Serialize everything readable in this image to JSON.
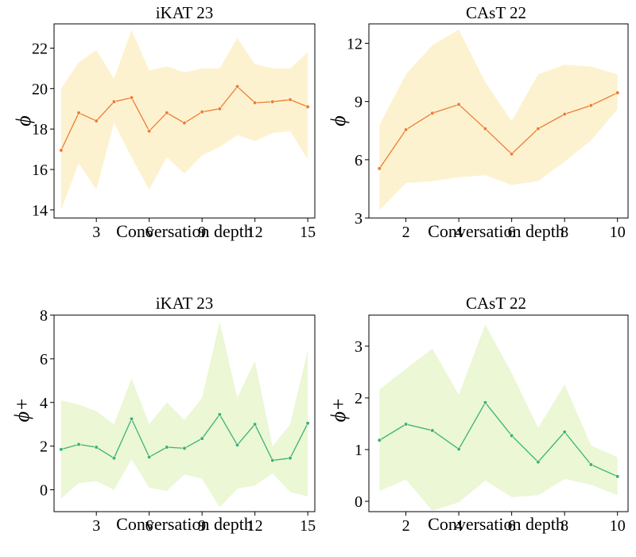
{
  "chart_data": [
    {
      "type": "line",
      "title": "iKAT 23",
      "xlabel": "Conversation depth",
      "ylabel": "ϕ",
      "xlim": [
        0.6,
        15.4
      ],
      "ylim": [
        13.6,
        23.2
      ],
      "xticks": [
        3,
        6,
        9,
        12,
        15
      ],
      "yticks": [
        14,
        16,
        18,
        20,
        22
      ],
      "line_color": "#ed7d31",
      "band_color": "#fdf2d0",
      "x": [
        1,
        2,
        3,
        4,
        5,
        6,
        7,
        8,
        9,
        10,
        11,
        12,
        13,
        14,
        15
      ],
      "series": [
        {
          "values": [
            16.95,
            18.8,
            18.4,
            19.35,
            19.55,
            17.9,
            18.8,
            18.3,
            18.85,
            19.0,
            20.1,
            19.3,
            19.35,
            19.45,
            19.1
          ],
          "lower": [
            14.0,
            16.3,
            15.0,
            18.3,
            16.6,
            15.0,
            16.6,
            15.8,
            16.7,
            17.1,
            17.7,
            17.4,
            17.8,
            17.9,
            16.5
          ],
          "upper": [
            20.0,
            21.3,
            21.9,
            20.5,
            22.9,
            20.9,
            21.1,
            20.8,
            21.0,
            21.0,
            22.5,
            21.2,
            21.0,
            21.0,
            21.8
          ]
        }
      ]
    },
    {
      "type": "line",
      "title": "CAsT 22",
      "xlabel": "Conversation depth",
      "ylabel": "ϕ",
      "xlim": [
        0.6,
        10.4
      ],
      "ylim": [
        3.0,
        13.0
      ],
      "xticks": [
        2,
        4,
        6,
        8,
        10
      ],
      "yticks": [
        3,
        6,
        9,
        12
      ],
      "line_color": "#ed7d31",
      "band_color": "#fdf2d0",
      "x": [
        1,
        2,
        3,
        4,
        5,
        6,
        7,
        8,
        9,
        10
      ],
      "series": [
        {
          "values": [
            5.55,
            7.55,
            8.4,
            8.85,
            7.6,
            6.3,
            7.6,
            8.35,
            8.8,
            9.45
          ],
          "lower": [
            3.4,
            4.8,
            4.9,
            5.1,
            5.2,
            4.7,
            4.9,
            5.9,
            7.0,
            8.6
          ],
          "upper": [
            7.8,
            10.4,
            11.9,
            12.7,
            10.0,
            8.0,
            10.4,
            10.9,
            10.8,
            10.4
          ]
        }
      ]
    },
    {
      "type": "line",
      "title": "iKAT 23",
      "xlabel": "Conversation depth",
      "ylabel": "ϕ+",
      "xlim": [
        0.6,
        15.4
      ],
      "ylim": [
        -1.0,
        8.0
      ],
      "xticks": [
        3,
        6,
        9,
        12,
        15
      ],
      "yticks": [
        0,
        2,
        4,
        6,
        8
      ],
      "line_color": "#3cb371",
      "band_color": "#ebf7d5",
      "x": [
        1,
        2,
        3,
        4,
        5,
        6,
        7,
        8,
        9,
        10,
        11,
        12,
        13,
        14,
        15
      ],
      "series": [
        {
          "values": [
            1.85,
            2.08,
            1.95,
            1.45,
            3.25,
            1.5,
            1.95,
            1.9,
            2.35,
            3.45,
            2.05,
            3.0,
            1.35,
            1.45,
            3.05
          ],
          "lower": [
            -0.4,
            0.3,
            0.4,
            0.0,
            1.4,
            0.1,
            -0.05,
            0.7,
            0.5,
            -0.8,
            0.05,
            0.2,
            0.75,
            -0.1,
            -0.3
          ],
          "upper": [
            4.1,
            3.9,
            3.6,
            3.0,
            5.1,
            3.0,
            4.0,
            3.2,
            4.2,
            7.7,
            4.2,
            5.9,
            2.0,
            3.0,
            6.4
          ]
        }
      ]
    },
    {
      "type": "line",
      "title": "CAsT 22",
      "xlabel": "Conversation depth",
      "ylabel": "ϕ+",
      "xlim": [
        0.6,
        10.4
      ],
      "ylim": [
        -0.2,
        3.6
      ],
      "xticks": [
        2,
        4,
        6,
        8,
        10
      ],
      "yticks": [
        0,
        1,
        2,
        3
      ],
      "line_color": "#3cb371",
      "band_color": "#ebf7d5",
      "x": [
        1,
        2,
        3,
        4,
        5,
        6,
        7,
        8,
        9,
        10
      ],
      "series": [
        {
          "values": [
            1.18,
            1.49,
            1.37,
            1.01,
            1.91,
            1.27,
            0.76,
            1.34,
            0.71,
            0.48
          ],
          "lower": [
            0.2,
            0.42,
            -0.18,
            -0.02,
            0.4,
            0.08,
            0.12,
            0.43,
            0.32,
            0.12
          ],
          "upper": [
            2.16,
            2.56,
            2.95,
            2.06,
            3.42,
            2.48,
            1.42,
            2.26,
            1.08,
            0.85
          ]
        }
      ]
    }
  ]
}
